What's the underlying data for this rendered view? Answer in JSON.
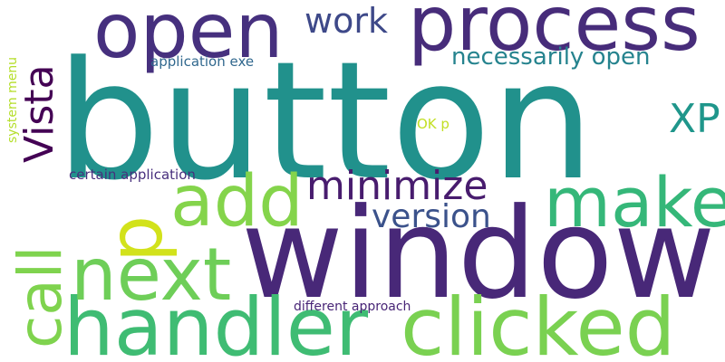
{
  "words": {
    "button": {
      "text": "button",
      "color": "#21918c"
    },
    "window": {
      "text": "window",
      "color": "#482878"
    },
    "process": {
      "text": "process",
      "color": "#472c7a"
    },
    "open": {
      "text": "open",
      "color": "#46307e"
    },
    "handler": {
      "text": "handler",
      "color": "#3fbc73"
    },
    "clicked": {
      "text": "clicked",
      "color": "#7ad151"
    },
    "next": {
      "text": "next",
      "color": "#6ece58"
    },
    "make": {
      "text": "make",
      "color": "#35b779"
    },
    "add": {
      "text": "add",
      "color": "#84d44b"
    },
    "call": {
      "text": "call",
      "color": "#7fd34e"
    },
    "p": {
      "text": "p",
      "color": "#d2e21b"
    },
    "vista": {
      "text": "Vista",
      "color": "#440154"
    },
    "xp": {
      "text": "XP",
      "color": "#1f968b"
    },
    "minimize": {
      "text": "minimize",
      "color": "#481c6e"
    },
    "version": {
      "text": "version",
      "color": "#3b528b"
    },
    "work": {
      "text": "work",
      "color": "#3e4989"
    },
    "necessarily_open": {
      "text": "necessarily open",
      "color": "#25838e"
    },
    "application_exe": {
      "text": "application exe",
      "color": "#31688e"
    },
    "system_menu": {
      "text": "system menu",
      "color": "#b5de2b"
    },
    "ok_p": {
      "text": "OK p",
      "color": "#c2df23"
    },
    "certain_application": {
      "text": "certain application",
      "color": "#472f7d"
    },
    "different_approach": {
      "text": "different approach",
      "color": "#482576"
    }
  }
}
